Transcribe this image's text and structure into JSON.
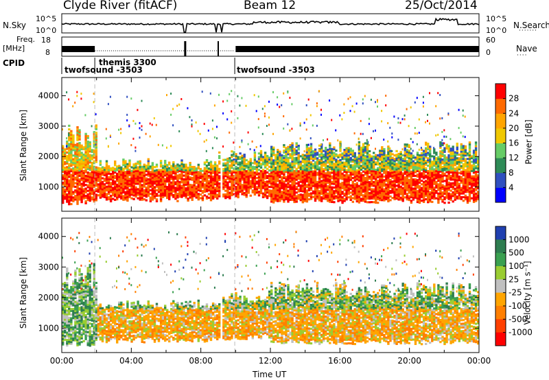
{
  "header": {
    "station": "Clyde River (fitACF)",
    "beam": "Beam 12",
    "date": "25/Oct/2014"
  },
  "strip_labels": {
    "nsky": "N.Sky",
    "nsearch": "N.Search",
    "nsearch_dots": "·······",
    "freq_top": "Freq.",
    "freq_unit": "[MHz]",
    "nave": "Nave",
    "nave_dots": "····",
    "cpid": "CPID"
  },
  "noise_axis": {
    "left_top": "10^5",
    "left_bottom": "10^0",
    "right_top": "10^5",
    "right_bottom": "10^0"
  },
  "freq_axis": {
    "left_top": "18",
    "left_bottom": "8",
    "right_top": "60",
    "right_bottom": "0"
  },
  "cpid_segments": [
    {
      "label": "twofsound -3503",
      "start_hour": 0.0
    },
    {
      "label": "themis 3300",
      "start_hour": 1.9
    },
    {
      "label": "twofsound -3503",
      "start_hour": 9.95
    }
  ],
  "colors": {
    "power_scale": [
      "#0000ff",
      "#3050c0",
      "#2e8b57",
      "#66cc66",
      "#f0c800",
      "#ffa500",
      "#ff6a00",
      "#ff0000"
    ],
    "velocity_scale": [
      "#2040b0",
      "#2e7d50",
      "#3aa050",
      "#9acd32",
      "#c0c0c0",
      "#ffa500",
      "#ff7f00",
      "#ff4000",
      "#ff0000"
    ]
  },
  "chart_data": [
    {
      "type": "heatmap",
      "panel": "power",
      "ylabel": "Slant Range [km]",
      "xlabel": "",
      "xlim_hours": [
        0,
        24
      ],
      "ylim_km": [
        200,
        4600
      ],
      "y_ticks": [
        "1000",
        "2000",
        "3000",
        "4000"
      ],
      "colorbar": {
        "label": "Power [dB]",
        "ticks": [
          "4",
          "8",
          "12",
          "16",
          "20",
          "24",
          "28"
        ],
        "range": [
          0,
          30
        ]
      },
      "dominant_features": [
        {
          "from_hour": 0.0,
          "to_hour": 9.0,
          "range_km": [
            400,
            1700
          ],
          "value_db": 26
        },
        {
          "from_hour": 10.0,
          "to_hour": 24.0,
          "range_km": [
            500,
            1500
          ],
          "value_db": 24
        },
        {
          "from_hour": 12.0,
          "to_hour": 24.0,
          "range_km": [
            1500,
            2500
          ],
          "value_db": 10
        }
      ]
    },
    {
      "type": "heatmap",
      "panel": "velocity",
      "ylabel": "Slant Range [km]",
      "xlabel": "Time UT",
      "xlim_hours": [
        0,
        24
      ],
      "x_ticks": [
        "00:00",
        "04:00",
        "08:00",
        "12:00",
        "16:00",
        "20:00",
        "00:00"
      ],
      "ylim_km": [
        200,
        4600
      ],
      "y_ticks": [
        "1000",
        "2000",
        "3000",
        "4000"
      ],
      "colorbar": {
        "label": "Velocity [m s⁻¹]",
        "ticks": [
          "1000",
          "500",
          "100",
          "25",
          "-25",
          "-100",
          "-500",
          "-1000"
        ]
      },
      "dominant_features": [
        {
          "from_hour": 0.0,
          "to_hour": 2.0,
          "range_km": [
            500,
            2500
          ],
          "value_ms": 150
        },
        {
          "from_hour": 2.0,
          "to_hour": 9.0,
          "range_km": [
            500,
            1800
          ],
          "value_ms": -250
        },
        {
          "from_hour": 10.0,
          "to_hour": 24.0,
          "range_km": [
            500,
            1600
          ],
          "value_ms": -250
        },
        {
          "from_hour": 14.0,
          "to_hour": 24.0,
          "range_km": [
            1500,
            2300
          ],
          "value_ms": 50
        }
      ]
    }
  ]
}
